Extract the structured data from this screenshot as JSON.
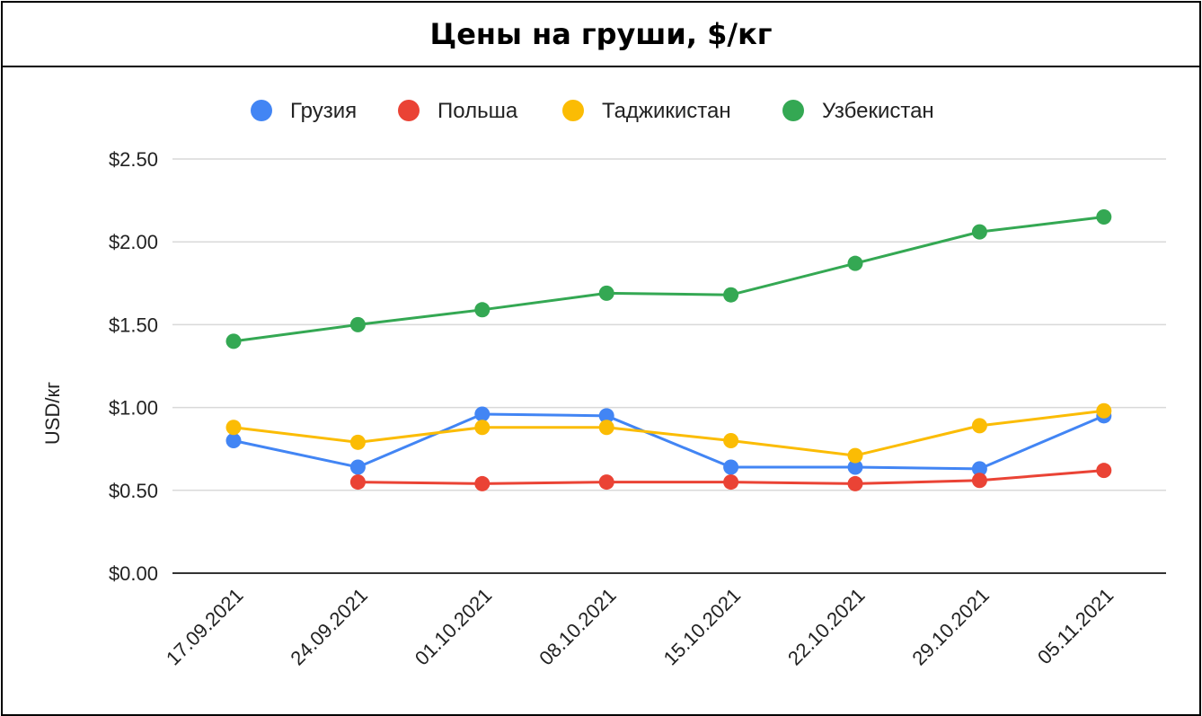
{
  "chart_data": {
    "type": "line",
    "title": "Цены на груши, $/кг",
    "xlabel": "",
    "ylabel": "USD/кг",
    "ylim": [
      0,
      2.5
    ],
    "yticks": [
      {
        "value": 0,
        "label": "$0.00"
      },
      {
        "value": 0.5,
        "label": "$0.50"
      },
      {
        "value": 1.0,
        "label": "$1.00"
      },
      {
        "value": 1.5,
        "label": "$1.50"
      },
      {
        "value": 2.0,
        "label": "$2.00"
      },
      {
        "value": 2.5,
        "label": "$2.50"
      }
    ],
    "categories": [
      "17.09.2021",
      "24.09.2021",
      "01.10.2021",
      "08.10.2021",
      "15.10.2021",
      "22.10.2021",
      "29.10.2021",
      "05.11.2021"
    ],
    "legend_position": "top",
    "grid": true,
    "series": [
      {
        "name": "Грузия",
        "color": "#4285F4",
        "values": [
          0.8,
          0.64,
          0.96,
          0.95,
          0.64,
          0.64,
          0.63,
          0.95
        ]
      },
      {
        "name": "Польша",
        "color": "#EA4335",
        "values": [
          null,
          0.55,
          0.54,
          0.55,
          0.55,
          0.54,
          0.56,
          0.62
        ]
      },
      {
        "name": "Таджикистан",
        "color": "#FBBC04",
        "values": [
          0.88,
          0.79,
          0.88,
          0.88,
          0.8,
          0.71,
          0.89,
          0.98
        ]
      },
      {
        "name": "Узбекистан",
        "color": "#34A853",
        "values": [
          1.4,
          1.5,
          1.59,
          1.69,
          1.68,
          1.87,
          2.06,
          2.15
        ]
      }
    ]
  }
}
